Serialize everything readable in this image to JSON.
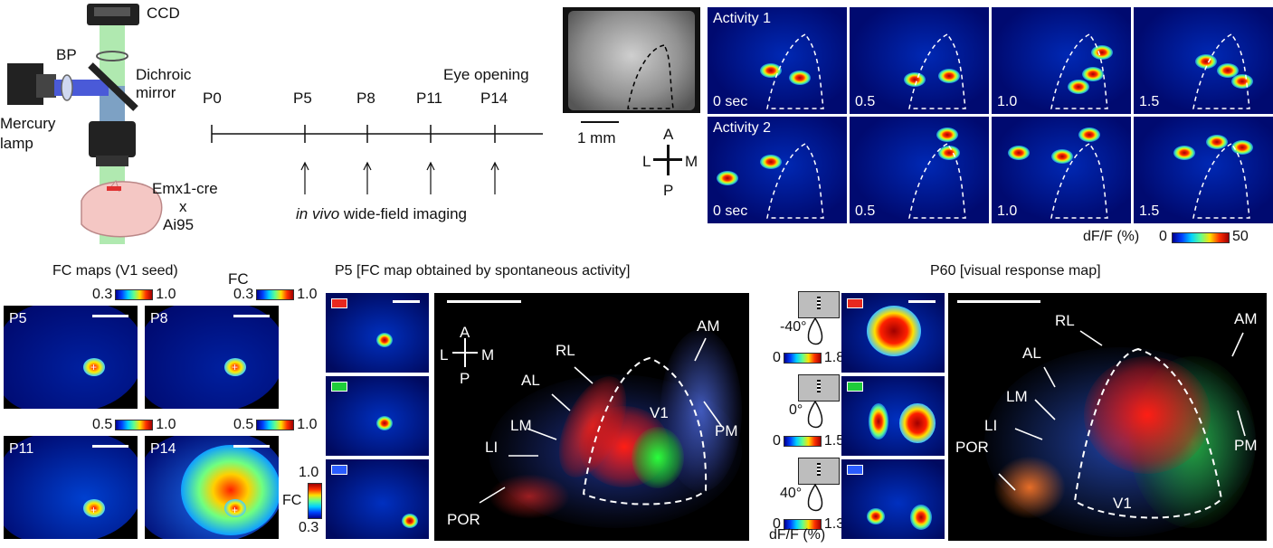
{
  "setup": {
    "ccd": "CCD",
    "bp": "BP",
    "dichroic": [
      "Dichroic",
      "mirror"
    ],
    "mercury": [
      "Mercury",
      "lamp"
    ],
    "mouse": [
      "Emx1-cre",
      "x",
      "Ai95"
    ]
  },
  "timeline": {
    "days": [
      "P0",
      "P5",
      "P8",
      "P11",
      "P14"
    ],
    "eye_opening": "Eye opening",
    "imaging_italic": "in vivo",
    "imaging_rest": " wide-field imaging"
  },
  "activity": {
    "scale": "1 mm",
    "rows": [
      {
        "label": "Activity 1",
        "times": [
          "0 sec",
          "0.5",
          "1.0",
          "1.5"
        ]
      },
      {
        "label": "Activity 2",
        "times": [
          "0 sec",
          "0.5",
          "1.0",
          "1.5"
        ]
      }
    ],
    "compass": {
      "a": "A",
      "p": "P",
      "l": "L",
      "m": "M"
    },
    "cbar_label": "dF/F (%)",
    "cbar_min": "0",
    "cbar_max": "50"
  },
  "fc_maps": {
    "title": "FC maps (V1 seed)",
    "fc_label": "FC",
    "panels": [
      {
        "label": "P5",
        "min": "0.3",
        "max": "1.0"
      },
      {
        "label": "P8",
        "min": "0.3",
        "max": "1.0"
      },
      {
        "label": "P11",
        "min": "0.5",
        "max": "1.0"
      },
      {
        "label": "P14",
        "min": "0.5",
        "max": "1.0"
      }
    ]
  },
  "p5_map": {
    "title": "P5 [FC map obtained by spontaneous activity]",
    "fc_label": "FC",
    "fc_max": "1.0",
    "fc_min": "0.3",
    "compass": {
      "a": "A",
      "p": "P",
      "l": "L",
      "m": "M"
    },
    "areas": [
      "AM",
      "RL",
      "AL",
      "LM",
      "LI",
      "POR",
      "PM",
      "V1"
    ]
  },
  "p60_map": {
    "title": "P60 [visual response map]",
    "angles": [
      "-40°",
      "0°",
      "40°"
    ],
    "ranges": [
      {
        "min": "0",
        "max": "1.8"
      },
      {
        "min": "0",
        "max": "1.5"
      },
      {
        "min": "0",
        "max": "1.3"
      }
    ],
    "dff": "dF/F (%)",
    "areas": [
      "RL",
      "AM",
      "AL",
      "LM",
      "LI",
      "POR",
      "PM",
      "V1"
    ]
  },
  "colors": {
    "red": "#e8281e",
    "green": "#1fcc3a",
    "blue": "#2a5cff"
  }
}
